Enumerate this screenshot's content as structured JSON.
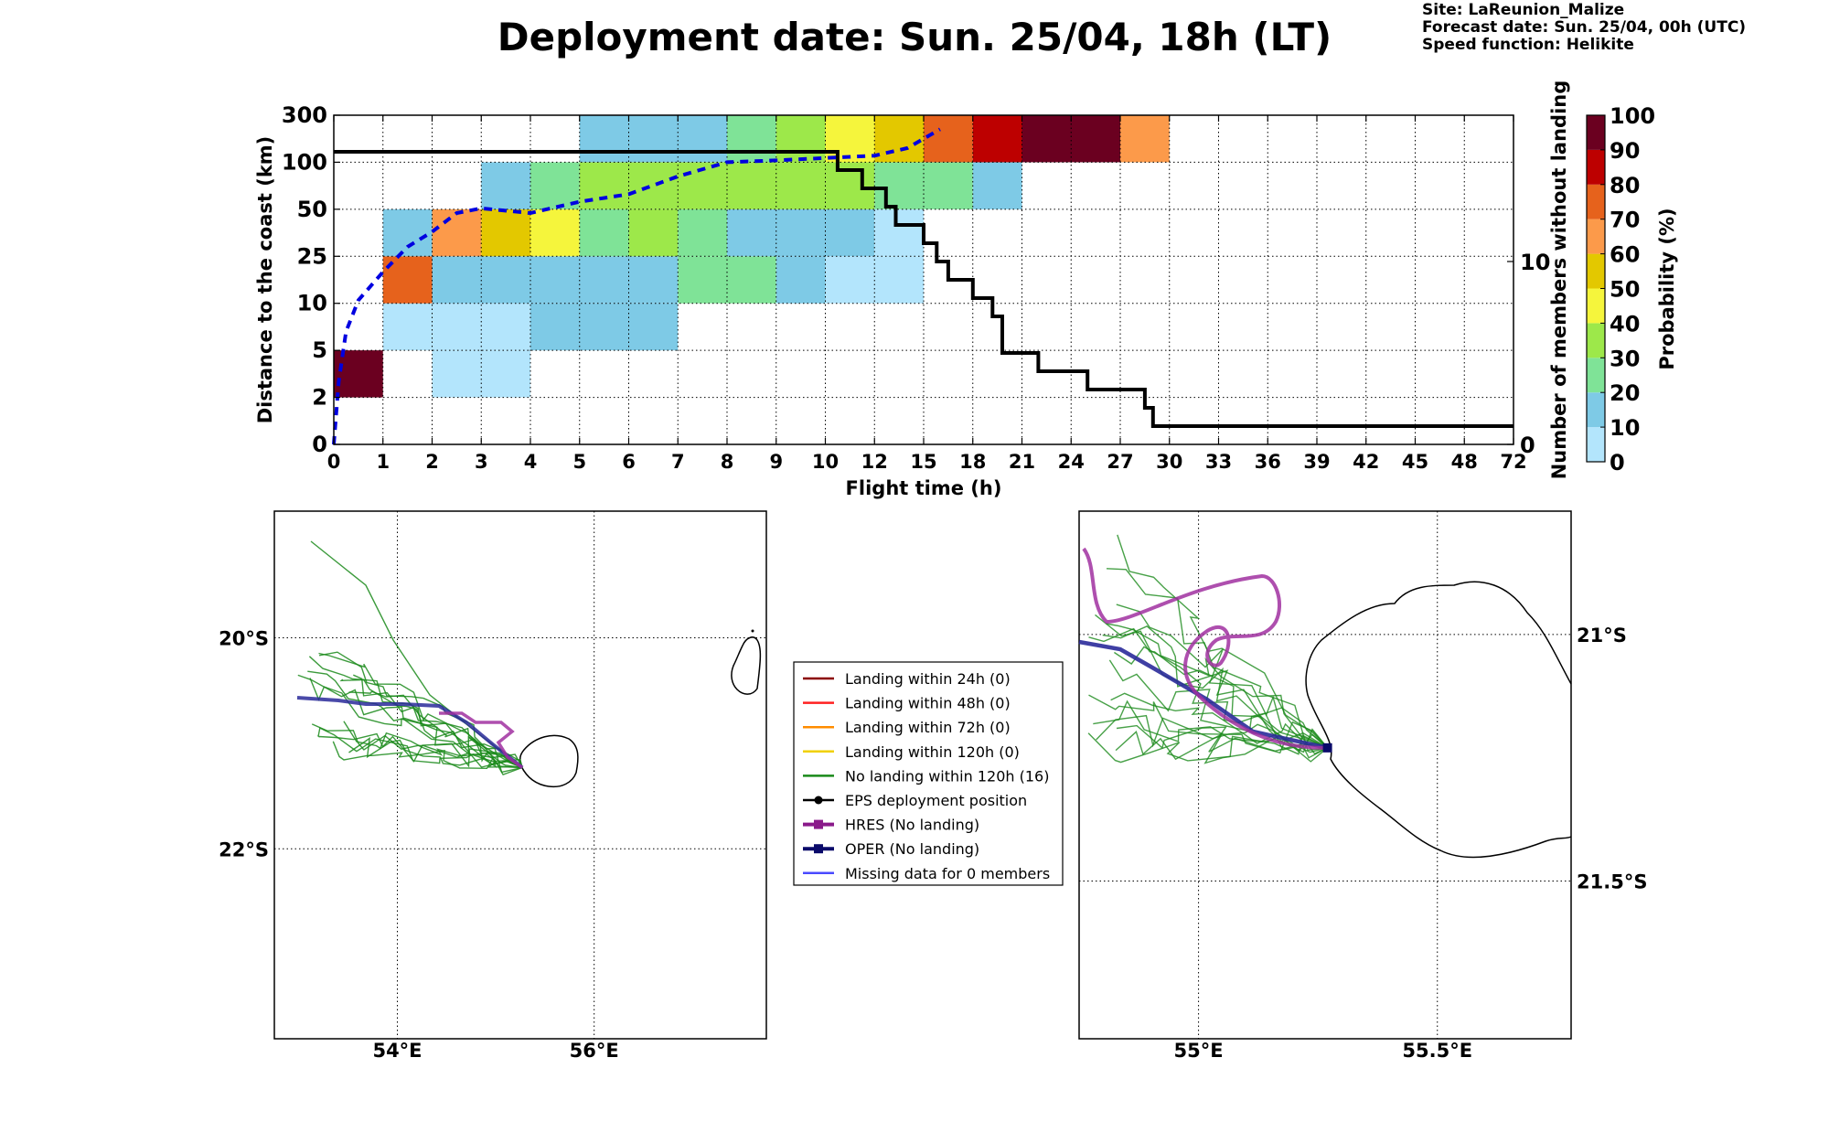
{
  "page": {
    "title": "Deployment date: Sun. 25/04, 18h (LT)",
    "site": "Site: LaReunion_Malize",
    "forecast_date": "Forecast date: Sun. 25/04, 00h (UTC)",
    "speed_function": "Speed function: Helikite"
  },
  "chart_data": [
    {
      "type": "heatmap",
      "xlabel": "Flight time (h)",
      "ylabel": "Distance to the coast (km)",
      "y2label": "Number of members without landing",
      "colorbar_label": "Probability (%)",
      "x_ticks": [
        "0",
        "1",
        "2",
        "3",
        "4",
        "5",
        "6",
        "7",
        "8",
        "9",
        "10",
        "12",
        "15",
        "18",
        "21",
        "24",
        "27",
        "30",
        "33",
        "36",
        "39",
        "42",
        "45",
        "48",
        "72"
      ],
      "y_ticks": [
        "0",
        "2",
        "5",
        "10",
        "25",
        "50",
        "100",
        "300"
      ],
      "y2_ticks": [
        "0",
        "10"
      ],
      "y2_range": [
        0,
        18
      ],
      "colorbar_ticks": [
        "0",
        "10",
        "20",
        "30",
        "40",
        "50",
        "60",
        "70",
        "80",
        "90",
        "100"
      ],
      "colorbar_colors": [
        "#b3e5fc",
        "#7ecae6",
        "#7fe397",
        "#9de84a",
        "#f5f53c",
        "#e3c800",
        "#fc9a4a",
        "#e6621c",
        "#bd0000",
        "#6b0020"
      ],
      "grid": true,
      "probability_cells_percent": [
        {
          "time_bin": "0-1",
          "distance_bin": "2-5",
          "prob": 95
        },
        {
          "time_bin": "2-4",
          "distance_bin": "2-5",
          "prob": 5
        },
        {
          "time_bin": "1-4",
          "distance_bin": "5-10",
          "prob": 5
        },
        {
          "time_bin": "4-7",
          "distance_bin": "5-10",
          "prob": 15
        },
        {
          "time_bin": "1-2",
          "distance_bin": "10-25",
          "prob": 75
        },
        {
          "time_bin": "2-7",
          "distance_bin": "10-25",
          "prob": 15
        },
        {
          "time_bin": "7-9",
          "distance_bin": "10-25",
          "prob": 25
        },
        {
          "time_bin": "9-10",
          "distance_bin": "10-25",
          "prob": 15
        },
        {
          "time_bin": "10-15",
          "distance_bin": "10-25",
          "prob": 5
        },
        {
          "time_bin": "1-2",
          "distance_bin": "25-50",
          "prob": 15
        },
        {
          "time_bin": "2-3",
          "distance_bin": "25-50",
          "prob": 65
        },
        {
          "time_bin": "3-4",
          "distance_bin": "25-50",
          "prob": 55
        },
        {
          "time_bin": "4-5",
          "distance_bin": "25-50",
          "prob": 45
        },
        {
          "time_bin": "5-6",
          "distance_bin": "25-50",
          "prob": 25
        },
        {
          "time_bin": "6-7",
          "distance_bin": "25-50",
          "prob": 35
        },
        {
          "time_bin": "7-8",
          "distance_bin": "25-50",
          "prob": 25
        },
        {
          "time_bin": "8-12",
          "distance_bin": "25-50",
          "prob": 15
        },
        {
          "time_bin": "12-15",
          "distance_bin": "25-50",
          "prob": 5
        },
        {
          "time_bin": "3-4",
          "distance_bin": "50-100",
          "prob": 15
        },
        {
          "time_bin": "4-5",
          "distance_bin": "50-100",
          "prob": 25
        },
        {
          "time_bin": "5-12",
          "distance_bin": "50-100",
          "prob": 35
        },
        {
          "time_bin": "12-18",
          "distance_bin": "50-100",
          "prob": 25
        },
        {
          "time_bin": "18-21",
          "distance_bin": "50-100",
          "prob": 15
        },
        {
          "time_bin": "5-8",
          "distance_bin": "100-300",
          "prob": 15
        },
        {
          "time_bin": "8-9",
          "distance_bin": "100-300",
          "prob": 25
        },
        {
          "time_bin": "9-10",
          "distance_bin": "100-300",
          "prob": 35
        },
        {
          "time_bin": "10-12",
          "distance_bin": "100-300",
          "prob": 45
        },
        {
          "time_bin": "12-15",
          "distance_bin": "100-300",
          "prob": 55
        },
        {
          "time_bin": "15-18",
          "distance_bin": "100-300",
          "prob": 75
        },
        {
          "time_bin": "18-21",
          "distance_bin": "100-300",
          "prob": 85
        },
        {
          "time_bin": "21-27",
          "distance_bin": "100-300",
          "prob": 95
        },
        {
          "time_bin": "27-30",
          "distance_bin": "100-300",
          "prob": 65
        }
      ],
      "members_without_landing_step": [
        {
          "x": 0,
          "y": 16
        },
        {
          "x": 10.5,
          "y": 16
        },
        {
          "x": 10.5,
          "y": 15
        },
        {
          "x": 11.5,
          "y": 15
        },
        {
          "x": 11.5,
          "y": 14
        },
        {
          "x": 12.7,
          "y": 14
        },
        {
          "x": 12.7,
          "y": 13
        },
        {
          "x": 13.3,
          "y": 13
        },
        {
          "x": 13.3,
          "y": 12
        },
        {
          "x": 15,
          "y": 12
        },
        {
          "x": 15,
          "y": 11
        },
        {
          "x": 15.8,
          "y": 11
        },
        {
          "x": 15.8,
          "y": 10
        },
        {
          "x": 16.5,
          "y": 10
        },
        {
          "x": 16.5,
          "y": 9
        },
        {
          "x": 18,
          "y": 9
        },
        {
          "x": 18,
          "y": 8
        },
        {
          "x": 19.2,
          "y": 8
        },
        {
          "x": 19.2,
          "y": 7
        },
        {
          "x": 19.8,
          "y": 7
        },
        {
          "x": 19.8,
          "y": 5
        },
        {
          "x": 22,
          "y": 5
        },
        {
          "x": 22,
          "y": 4
        },
        {
          "x": 25,
          "y": 4
        },
        {
          "x": 25,
          "y": 3
        },
        {
          "x": 28.5,
          "y": 3
        },
        {
          "x": 28.5,
          "y": 2
        },
        {
          "x": 29,
          "y": 2
        },
        {
          "x": 29,
          "y": 1
        },
        {
          "x": 72,
          "y": 1
        }
      ],
      "median_distance_dashed": [
        {
          "x": 0,
          "y": 0
        },
        {
          "x": 0.1,
          "y": 3
        },
        {
          "x": 0.25,
          "y": 7
        },
        {
          "x": 0.5,
          "y": 11
        },
        {
          "x": 1,
          "y": 20
        },
        {
          "x": 1.5,
          "y": 30
        },
        {
          "x": 2,
          "y": 38
        },
        {
          "x": 2.5,
          "y": 48
        },
        {
          "x": 3,
          "y": 51
        },
        {
          "x": 4,
          "y": 48
        },
        {
          "x": 5,
          "y": 58
        },
        {
          "x": 6,
          "y": 66
        },
        {
          "x": 7,
          "y": 85
        },
        {
          "x": 8,
          "y": 100
        },
        {
          "x": 9,
          "y": 108
        },
        {
          "x": 10,
          "y": 118
        },
        {
          "x": 12,
          "y": 128
        },
        {
          "x": 14,
          "y": 160
        },
        {
          "x": 16,
          "y": 240
        }
      ]
    },
    {
      "type": "map",
      "name": "overview-map",
      "lat_labels": [
        "20°S",
        "22°S"
      ],
      "lon_labels": [
        "54°E",
        "56°E"
      ],
      "extent": {
        "lon": [
          52.75,
          57.75
        ],
        "lat": [
          -18.8,
          -23.8
        ]
      },
      "islands": [
        "Réunion",
        "Mauritius"
      ]
    },
    {
      "type": "map",
      "name": "zoom-map",
      "lat_labels": [
        "21°S",
        "21.5°S"
      ],
      "lon_labels": [
        "55°E",
        "55.5°E"
      ],
      "extent": {
        "lon": [
          54.75,
          55.78
        ],
        "lat": [
          -20.75,
          -21.82
        ]
      },
      "deployment_site": {
        "lon": 55.27,
        "lat": -21.23
      }
    }
  ],
  "legend": {
    "items": [
      {
        "label": "Landing within 24h (0)",
        "color": "#8b0000",
        "marker": "none"
      },
      {
        "label": "Landing within 48h (0)",
        "color": "#ff2020",
        "marker": "none"
      },
      {
        "label": "Landing within 72h (0)",
        "color": "#ff8c00",
        "marker": "none"
      },
      {
        "label": "Landing within 120h (0)",
        "color": "#f0d000",
        "marker": "none"
      },
      {
        "label": "No landing within 120h (16)",
        "color": "#1a8a1a",
        "marker": "none"
      },
      {
        "label": "EPS deployment position",
        "color": "#000000",
        "marker": "circle"
      },
      {
        "label": "HRES (No landing)",
        "color": "#8a1a8a",
        "marker": "square"
      },
      {
        "label": "OPER (No landing)",
        "color": "#0a0a6a",
        "marker": "square"
      },
      {
        "label": "Missing data for 0 members",
        "color": "#4a4aff",
        "marker": "none"
      }
    ]
  }
}
